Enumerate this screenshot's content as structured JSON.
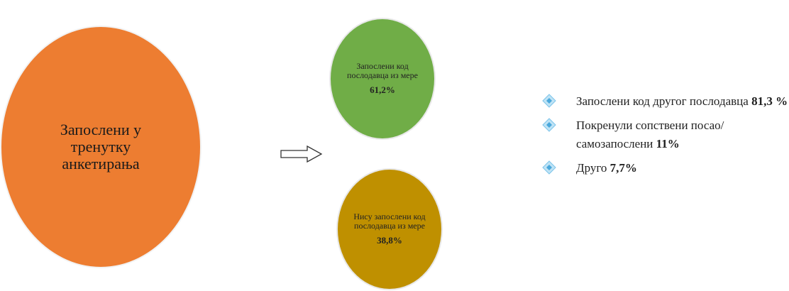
{
  "main_circle": {
    "label": "Запослени у тренутку анкетирања",
    "color": "#ed7d31"
  },
  "green_circle": {
    "label": "Запослени код послодавца из мере",
    "percent": "61,2%",
    "color": "#70ad47"
  },
  "gold_circle": {
    "label": "Нису запослени код послодавца из мере",
    "percent": "38,8%",
    "color": "#bf9000"
  },
  "arrow_icon": "right-arrow-icon",
  "legend": {
    "marker_icon": "diamond-bullet-icon",
    "items": [
      {
        "text": "Запослени код другог послодавца",
        "value": "81,3 %"
      },
      {
        "text": "Покренули сопствени посао/самозапослени",
        "value": "11%"
      },
      {
        "text": "Друго",
        "value": "7,7%"
      }
    ]
  }
}
